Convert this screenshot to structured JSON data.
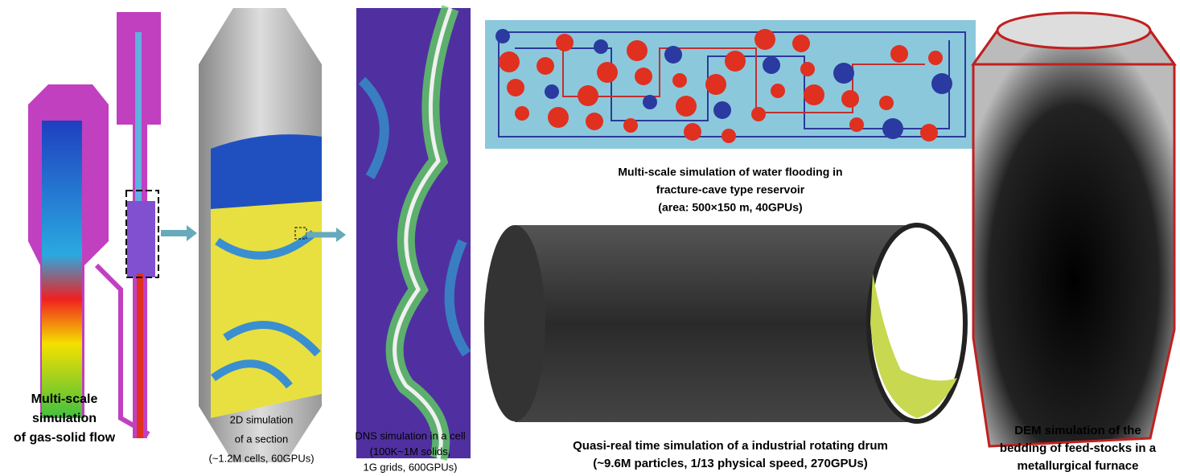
{
  "captions": {
    "gas_solid": [
      "Multi-scale",
      "simulation",
      "of gas-solid flow"
    ],
    "section": [
      "2D simulation",
      "of a section",
      "(~1.2M cells, 60GPUs)"
    ],
    "dns": [
      "DNS simulation in a cell",
      "(100K~1M solids,",
      "1G grids, 600GPUs)"
    ],
    "water": [
      "Multi-scale simulation of water flooding in",
      "fracture-cave type reservoir",
      "(area: 500×150 m, 40GPUs)"
    ],
    "drum": [
      "Quasi-real time simulation of a industrial rotating drum",
      "(~9.6M particles, 1/13 physical speed, 270GPUs)"
    ],
    "dem": [
      "DEM simulation of the",
      "bedding of feed-stocks in a",
      "metallurgical furnace"
    ]
  }
}
